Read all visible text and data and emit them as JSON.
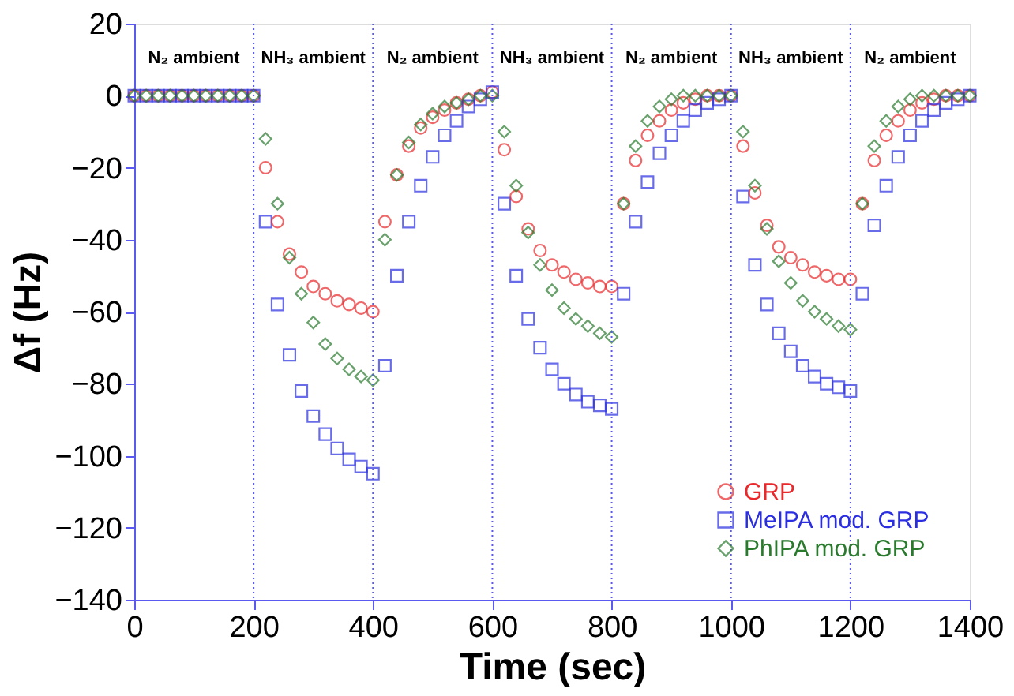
{
  "chart_data": {
    "type": "scatter",
    "xlabel": "Time (sec)",
    "ylabel": "Δf (Hz)",
    "x": [
      0,
      20,
      40,
      60,
      80,
      100,
      120,
      140,
      160,
      180,
      200,
      220,
      240,
      260,
      280,
      300,
      320,
      340,
      360,
      380,
      400,
      420,
      440,
      460,
      480,
      500,
      520,
      540,
      560,
      580,
      600,
      620,
      640,
      660,
      680,
      700,
      720,
      740,
      760,
      780,
      800,
      820,
      840,
      860,
      880,
      900,
      920,
      940,
      960,
      980,
      1000,
      1020,
      1040,
      1060,
      1080,
      1100,
      1120,
      1140,
      1160,
      1180,
      1200,
      1220,
      1240,
      1260,
      1280,
      1300,
      1320,
      1340,
      1360,
      1380,
      1400
    ],
    "series": [
      {
        "name": "GRP",
        "color": "#e8282b",
        "marker": "circle",
        "values": [
          0,
          0,
          0,
          0,
          0,
          0,
          0,
          0,
          0,
          0,
          0,
          -20,
          -35,
          -44,
          -49,
          -53,
          -55,
          -57,
          -58,
          -59,
          -60,
          -35,
          -22,
          -14,
          -9,
          -6,
          -4,
          -2,
          -1,
          0,
          1,
          -15,
          -28,
          -37,
          -43,
          -47,
          -49,
          -51,
          -52,
          -53,
          -53,
          -30,
          -18,
          -11,
          -7,
          -4,
          -2,
          -1,
          0,
          0,
          0,
          -14,
          -27,
          -36,
          -42,
          -45,
          -47,
          -49,
          -50,
          -51,
          -51,
          -30,
          -18,
          -11,
          -7,
          -4,
          -2,
          -1,
          0,
          0,
          0
        ]
      },
      {
        "name": "MeIPA mod. GRP",
        "color": "#2a2ee0",
        "marker": "square",
        "values": [
          0,
          0,
          0,
          0,
          0,
          0,
          0,
          0,
          0,
          0,
          0,
          -35,
          -58,
          -72,
          -82,
          -89,
          -94,
          -98,
          -101,
          -103,
          -105,
          -75,
          -50,
          -35,
          -25,
          -17,
          -11,
          -7,
          -3,
          -1,
          1,
          -30,
          -50,
          -62,
          -70,
          -76,
          -80,
          -83,
          -85,
          -86,
          -87,
          -55,
          -35,
          -24,
          -16,
          -11,
          -7,
          -4,
          -2,
          -1,
          0,
          -28,
          -47,
          -58,
          -66,
          -71,
          -75,
          -78,
          -80,
          -81,
          -82,
          -55,
          -36,
          -25,
          -17,
          -11,
          -7,
          -4,
          -2,
          -1,
          0
        ]
      },
      {
        "name": "PhIPA mod. GRP",
        "color": "#2a7a2e",
        "marker": "diamond",
        "values": [
          0,
          0,
          0,
          0,
          0,
          0,
          0,
          0,
          0,
          0,
          0,
          -12,
          -30,
          -45,
          -55,
          -63,
          -69,
          -73,
          -76,
          -78,
          -79,
          -40,
          -22,
          -13,
          -8,
          -5,
          -3,
          -2,
          -1,
          0,
          0,
          -10,
          -25,
          -38,
          -47,
          -54,
          -59,
          -62,
          -64,
          -66,
          -67,
          -30,
          -14,
          -7,
          -3,
          -1,
          0,
          0,
          0,
          0,
          0,
          -10,
          -25,
          -37,
          -46,
          -52,
          -57,
          -60,
          -62,
          -64,
          -65,
          -30,
          -14,
          -7,
          -3,
          -1,
          0,
          0,
          0,
          0,
          0
        ]
      }
    ],
    "xlim": [
      0,
      1400
    ],
    "xticks": [
      0,
      200,
      400,
      600,
      800,
      1000,
      1200,
      1400
    ],
    "ylim": [
      -140,
      20
    ],
    "yticks": [
      -140,
      -120,
      -100,
      -80,
      -60,
      -40,
      -20,
      0,
      20
    ],
    "grid": false,
    "legend": "bottom right",
    "ref_lines": [
      {
        "axis": "x",
        "value": 200,
        "color": "#5a5af0",
        "line_style": "dotted"
      },
      {
        "axis": "x",
        "value": 400,
        "color": "#5a5af0",
        "line_style": "dotted"
      },
      {
        "axis": "x",
        "value": 600,
        "color": "#5a5af0",
        "line_style": "dotted"
      },
      {
        "axis": "x",
        "value": 800,
        "color": "#5a5af0",
        "line_style": "dotted"
      },
      {
        "axis": "x",
        "value": 1000,
        "color": "#5a5af0",
        "line_style": "dotted"
      },
      {
        "axis": "x",
        "value": 1200,
        "color": "#5a5af0",
        "line_style": "dotted"
      }
    ],
    "annotations": [
      "N₂ ambient",
      "NH₃ ambient",
      "N₂ ambient",
      "NH₃ ambient",
      "N₂ ambient",
      "NH₃ ambient",
      "N₂ ambient"
    ]
  }
}
